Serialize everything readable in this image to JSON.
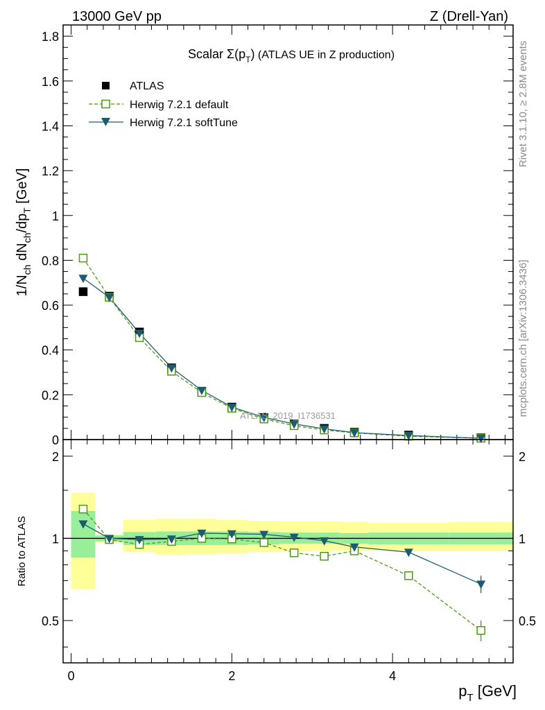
{
  "header": {
    "left": "13000 GeV pp",
    "right": "Z (Drell-Yan)"
  },
  "side_labels": {
    "upper": "Rivet 3.1.10, ≥ 2.8M events",
    "lower": "mcplots.cern.ch [arXiv:1306.3436]"
  },
  "watermark": "ATLAS_2019_I1736531",
  "chart_data": [
    {
      "panel": "main",
      "type": "scatter",
      "title_main": "Scalar Σ(p",
      "title_sub": "T",
      "title_close": ")",
      "title_rest": " (ATLAS UE in Z production)",
      "ylabel": "1/N_ch dN_ch/dp_T [GeV]",
      "ylim": [
        0,
        1.85
      ],
      "xlim": [
        -0.1,
        5.5
      ],
      "yticks": [
        0,
        0.2,
        0.4,
        0.6,
        0.8,
        1,
        1.2,
        1.4,
        1.6,
        1.8
      ],
      "ytick_labels": [
        "0",
        "0.2",
        "0.4",
        "0.6",
        "0.8",
        "1",
        "1.2",
        "1.4",
        "1.6",
        "1.8"
      ],
      "legend": [
        {
          "label": "ATLAS",
          "marker": "filled-square",
          "color": "#000000",
          "line": "none"
        },
        {
          "label": "Herwig 7.2.1 default",
          "marker": "open-square",
          "color": "#4a9a12",
          "line": "dashed"
        },
        {
          "label": "Herwig 7.2.1 softTune",
          "marker": "filled-triangle-down",
          "color": "#1c5c6e",
          "line": "solid"
        }
      ],
      "x": [
        0.15,
        0.475,
        0.85,
        1.25,
        1.625,
        2.0,
        2.4,
        2.775,
        3.15,
        3.525,
        4.2,
        5.1
      ],
      "series": [
        {
          "name": "ATLAS",
          "values": [
            0.66,
            0.64,
            0.48,
            0.32,
            0.215,
            0.145,
            0.098,
            0.07,
            0.05,
            0.033,
            0.02,
            0.008
          ]
        },
        {
          "name": "Herwig 7.2.1 default",
          "values": [
            0.81,
            0.635,
            0.455,
            0.305,
            0.21,
            0.14,
            0.092,
            0.062,
            0.043,
            0.03,
            0.015,
            0.004
          ]
        },
        {
          "name": "Herwig 7.2.1 softTune",
          "values": [
            0.72,
            0.635,
            0.475,
            0.32,
            0.22,
            0.145,
            0.099,
            0.07,
            0.048,
            0.031,
            0.018,
            0.006
          ]
        }
      ]
    },
    {
      "panel": "ratio",
      "type": "scatter",
      "ylabel": "Ratio to ATLAS",
      "xlabel_main": "p",
      "xlabel_sub": "T",
      "xlabel_rest": " [GeV]",
      "ylim": [
        0.35,
        2.3
      ],
      "xlim": [
        -0.1,
        5.5
      ],
      "yticks": [
        0.5,
        1,
        2
      ],
      "ytick_labels": [
        "0.5",
        "1",
        "2"
      ],
      "xticks": [
        0,
        2,
        4
      ],
      "xtick_labels": [
        "0",
        "2",
        "4"
      ],
      "bins": [
        [
          0,
          0.3
        ],
        [
          0.3,
          0.65
        ],
        [
          0.65,
          1.05
        ],
        [
          1.05,
          1.45
        ],
        [
          1.45,
          1.8
        ],
        [
          1.8,
          2.2
        ],
        [
          2.2,
          2.6
        ],
        [
          2.6,
          2.95
        ],
        [
          2.95,
          3.35
        ],
        [
          3.35,
          3.7
        ],
        [
          3.7,
          4.7
        ],
        [
          4.7,
          5.5
        ]
      ],
      "band_stat": [
        [
          0.85,
          1.26
        ],
        [
          0.975,
          1.025
        ],
        [
          0.945,
          1.055
        ],
        [
          0.945,
          1.06
        ],
        [
          0.945,
          1.06
        ],
        [
          0.945,
          1.06
        ],
        [
          0.95,
          1.055
        ],
        [
          0.955,
          1.05
        ],
        [
          0.955,
          1.05
        ],
        [
          0.955,
          1.045
        ],
        [
          0.95,
          1.05
        ],
        [
          0.95,
          1.05
        ]
      ],
      "band_total": [
        [
          0.65,
          1.47
        ],
        [
          0.965,
          1.035
        ],
        [
          0.89,
          1.17
        ],
        [
          0.87,
          1.18
        ],
        [
          0.875,
          1.18
        ],
        [
          0.88,
          1.17
        ],
        [
          0.89,
          1.16
        ],
        [
          0.895,
          1.155
        ],
        [
          0.9,
          1.155
        ],
        [
          0.9,
          1.15
        ],
        [
          0.9,
          1.14
        ],
        [
          0.9,
          1.15
        ]
      ],
      "x": [
        0.15,
        0.475,
        0.85,
        1.25,
        1.625,
        2.0,
        2.4,
        2.775,
        3.15,
        3.525,
        4.2,
        5.1
      ],
      "series": [
        {
          "name": "Herwig 7.2.1 default",
          "values": [
            1.28,
            0.99,
            0.95,
            0.975,
            1.0,
            0.995,
            0.965,
            0.885,
            0.86,
            0.9,
            0.73,
            0.46
          ],
          "errors": [
            0.02,
            0.01,
            0.01,
            0.01,
            0.01,
            0.01,
            0.01,
            0.01,
            0.01,
            0.015,
            0.02,
            0.04
          ]
        },
        {
          "name": "Herwig 7.2.1 softTune",
          "values": [
            1.13,
            1.0,
            0.99,
            0.995,
            1.045,
            1.04,
            1.035,
            1.01,
            0.98,
            0.93,
            0.89,
            0.68
          ],
          "errors": [
            0.02,
            0.01,
            0.01,
            0.01,
            0.01,
            0.01,
            0.01,
            0.01,
            0.01,
            0.02,
            0.02,
            0.05
          ]
        }
      ]
    }
  ]
}
